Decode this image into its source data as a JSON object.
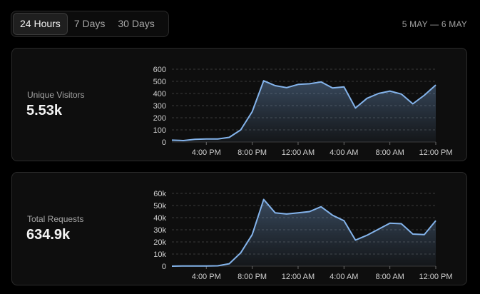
{
  "range": {
    "options": [
      "24 Hours",
      "7 Days",
      "30 Days"
    ],
    "selected": "24 Hours"
  },
  "date_range": "5 MAY — 6 MAY",
  "colors": {
    "line": "#84b4ec",
    "grid": "#3a3a3a"
  },
  "cards": [
    {
      "label": "Unique Visitors",
      "value": "5.53k"
    },
    {
      "label": "Total Requests",
      "value": "634.9k"
    }
  ],
  "chart_data": [
    {
      "type": "area",
      "title": "Unique Visitors",
      "yticks": [
        "0",
        "100",
        "200",
        "300",
        "400",
        "500",
        "600"
      ],
      "ylim": [
        0,
        600
      ],
      "xtick_labels": [
        "4:00 PM",
        "8:00 PM",
        "12:00 AM",
        "4:00 AM",
        "8:00 AM",
        "12:00 PM"
      ],
      "series": [
        {
          "values": [
            15,
            12,
            22,
            25,
            25,
            38,
            100,
            250,
            505,
            465,
            448,
            475,
            480,
            495,
            445,
            455,
            280,
            360,
            400,
            420,
            395,
            315,
            385,
            470
          ]
        }
      ],
      "grid": true
    },
    {
      "type": "area",
      "title": "Total Requests",
      "yticks": [
        "0",
        "10k",
        "20k",
        "30k",
        "40k",
        "50k",
        "60k"
      ],
      "ylim": [
        0,
        60000
      ],
      "xtick_labels": [
        "4:00 PM",
        "8:00 PM",
        "12:00 AM",
        "4:00 AM",
        "8:00 AM",
        "12:00 PM"
      ],
      "series": [
        {
          "values": [
            0,
            200,
            200,
            200,
            300,
            2000,
            11000,
            26000,
            55000,
            44000,
            43000,
            44000,
            45000,
            49000,
            42000,
            37500,
            21500,
            25500,
            30500,
            35500,
            35000,
            26500,
            26000,
            37500
          ]
        }
      ],
      "grid": true
    }
  ]
}
